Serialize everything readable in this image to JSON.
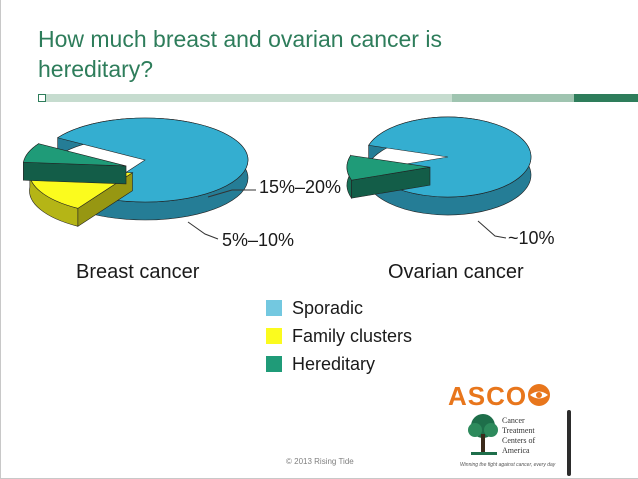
{
  "slide": {
    "title": "How much breast and ovarian cancer is hereditary?",
    "copyright": "© 2013 Rising Tide"
  },
  "colors": {
    "title": "#2e7d5b",
    "sporadic": "#34aed0",
    "family_clusters": "#fbfb1e",
    "hereditary": "#1f9b78",
    "rule_light": "#a9c8b8",
    "rule_dark": "#2e7d5b"
  },
  "chart_data": [
    {
      "type": "pie",
      "title": "Breast cancer",
      "slices": [
        {
          "name": "Sporadic",
          "value": 75
        },
        {
          "name": "Family clusters",
          "value": 17.5,
          "label": "15%–20%",
          "exploded": true
        },
        {
          "name": "Hereditary",
          "value": 7.5,
          "label": "5%–10%",
          "exploded": true
        }
      ]
    },
    {
      "type": "pie",
      "title": "Ovarian cancer",
      "slices": [
        {
          "name": "Sporadic",
          "value": 90
        },
        {
          "name": "Hereditary",
          "value": 10,
          "label": "~10%",
          "exploded": true
        }
      ]
    }
  ],
  "legend": [
    {
      "name": "Sporadic",
      "color": "#73c8e0"
    },
    {
      "name": "Family clusters",
      "color": "#fbfb1e"
    },
    {
      "name": "Hereditary",
      "color": "#1f9b78"
    }
  ],
  "logos": {
    "asco": "ASCO",
    "ctca_name": "Cancer Treatment Centers of America",
    "ctca_tagline": "Winning the fight against cancer, every day"
  }
}
